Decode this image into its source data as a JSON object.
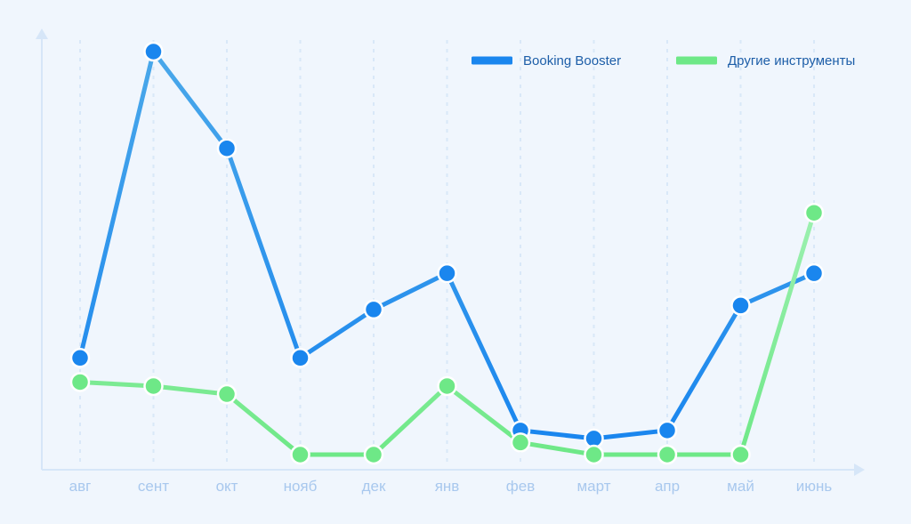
{
  "chart_data": {
    "type": "line",
    "categories": [
      "авг",
      "сент",
      "окт",
      "нояб",
      "дек",
      "янв",
      "фев",
      "март",
      "апр",
      "май",
      "июнь"
    ],
    "series": [
      {
        "name": "Booking Booster",
        "values": [
          24,
          100,
          76,
          24,
          36,
          45,
          6,
          4,
          6,
          37,
          45
        ],
        "color": "#1a86ee",
        "line_color_alt": "#4aa8ea"
      },
      {
        "name": "Другие инструменты",
        "values": [
          18,
          17,
          15,
          0,
          0,
          17,
          3,
          0,
          0,
          0,
          60
        ],
        "color": "#6ee887",
        "line_color_alt": "#9cf0b0"
      }
    ],
    "ylim": [
      0,
      100
    ],
    "grid": "vertical-dashed",
    "legend": "top-right",
    "colors": {
      "background": "#f0f6fd",
      "axis": "#d6e6f8",
      "grid": "#d9e8f8",
      "tick_label": "#a8c8ee",
      "legend_text": "#1d5ea8"
    }
  }
}
